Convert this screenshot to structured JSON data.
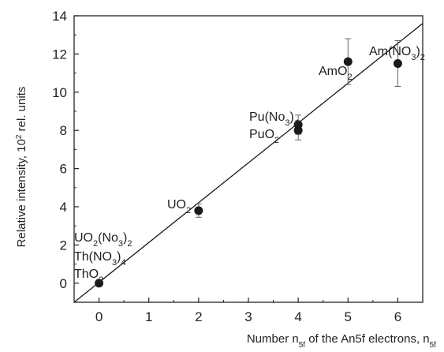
{
  "chart_data": {
    "type": "scatter",
    "title": "",
    "xlabel_parts": {
      "prefix": "Number n",
      "sub1": "5f",
      "middle": " of the An5f electrons, n",
      "sub2": "5f"
    },
    "ylabel_parts": {
      "prefix": "Relative intensity, 10",
      "sup": "2",
      "suffix": " rel. units"
    },
    "xlim": [
      -0.5,
      6.5
    ],
    "ylim": [
      -1,
      14
    ],
    "x_ticks": [
      0,
      1,
      2,
      3,
      4,
      5,
      6
    ],
    "y_ticks": [
      0,
      2,
      4,
      6,
      8,
      10,
      12,
      14
    ],
    "grid": false,
    "legend": "none",
    "series": [
      {
        "points": [
          {
            "x": 0,
            "y": 0,
            "err": 0
          },
          {
            "x": 2,
            "y": 3.8,
            "err": 0.35
          },
          {
            "x": 4,
            "y": 8.0,
            "err": 0.5
          },
          {
            "x": 4,
            "y": 8.3,
            "err": 0.5
          },
          {
            "x": 5,
            "y": 11.6,
            "err": 1.2
          },
          {
            "x": 6,
            "y": 11.5,
            "err": 1.2
          }
        ]
      }
    ],
    "fit_line": {
      "x": [
        -0.5,
        6.5
      ],
      "y": [
        -1.0,
        13.6
      ]
    },
    "annotations": [
      {
        "id": "uo2no3",
        "parts": [
          [
            "UO",
            "n"
          ],
          [
            "2",
            "sub"
          ],
          [
            "(No",
            "n"
          ],
          [
            "3",
            "sub"
          ],
          [
            ")",
            "n"
          ],
          [
            "2",
            "sub"
          ]
        ]
      },
      {
        "id": "thno3",
        "parts": [
          [
            "Th(NO",
            "n"
          ],
          [
            "3",
            "sub"
          ],
          [
            ")",
            "n"
          ],
          [
            "4",
            "sub"
          ]
        ]
      },
      {
        "id": "tho2",
        "parts": [
          [
            "ThO",
            "n"
          ],
          [
            "2",
            "sub"
          ]
        ]
      },
      {
        "id": "uo2",
        "parts": [
          [
            "UO",
            "n"
          ],
          [
            "2",
            "sub"
          ]
        ]
      },
      {
        "id": "puno3",
        "parts": [
          [
            "Pu(No",
            "n"
          ],
          [
            "3",
            "sub"
          ],
          [
            ")",
            "n"
          ],
          [
            "4",
            "sub"
          ]
        ]
      },
      {
        "id": "puo2",
        "parts": [
          [
            "PuO",
            "n"
          ],
          [
            "2",
            "sub"
          ]
        ]
      },
      {
        "id": "amo2",
        "parts": [
          [
            "AmO",
            "n"
          ],
          [
            "2",
            "sub"
          ]
        ]
      },
      {
        "id": "amno3",
        "parts": [
          [
            "Am(NO",
            "n"
          ],
          [
            "3",
            "sub"
          ],
          [
            ")",
            "n"
          ],
          [
            "2",
            "sub"
          ]
        ]
      }
    ],
    "colors": {
      "axis": "#222222",
      "marker": "#1a1a1a",
      "line": "#1a1a1a"
    }
  }
}
